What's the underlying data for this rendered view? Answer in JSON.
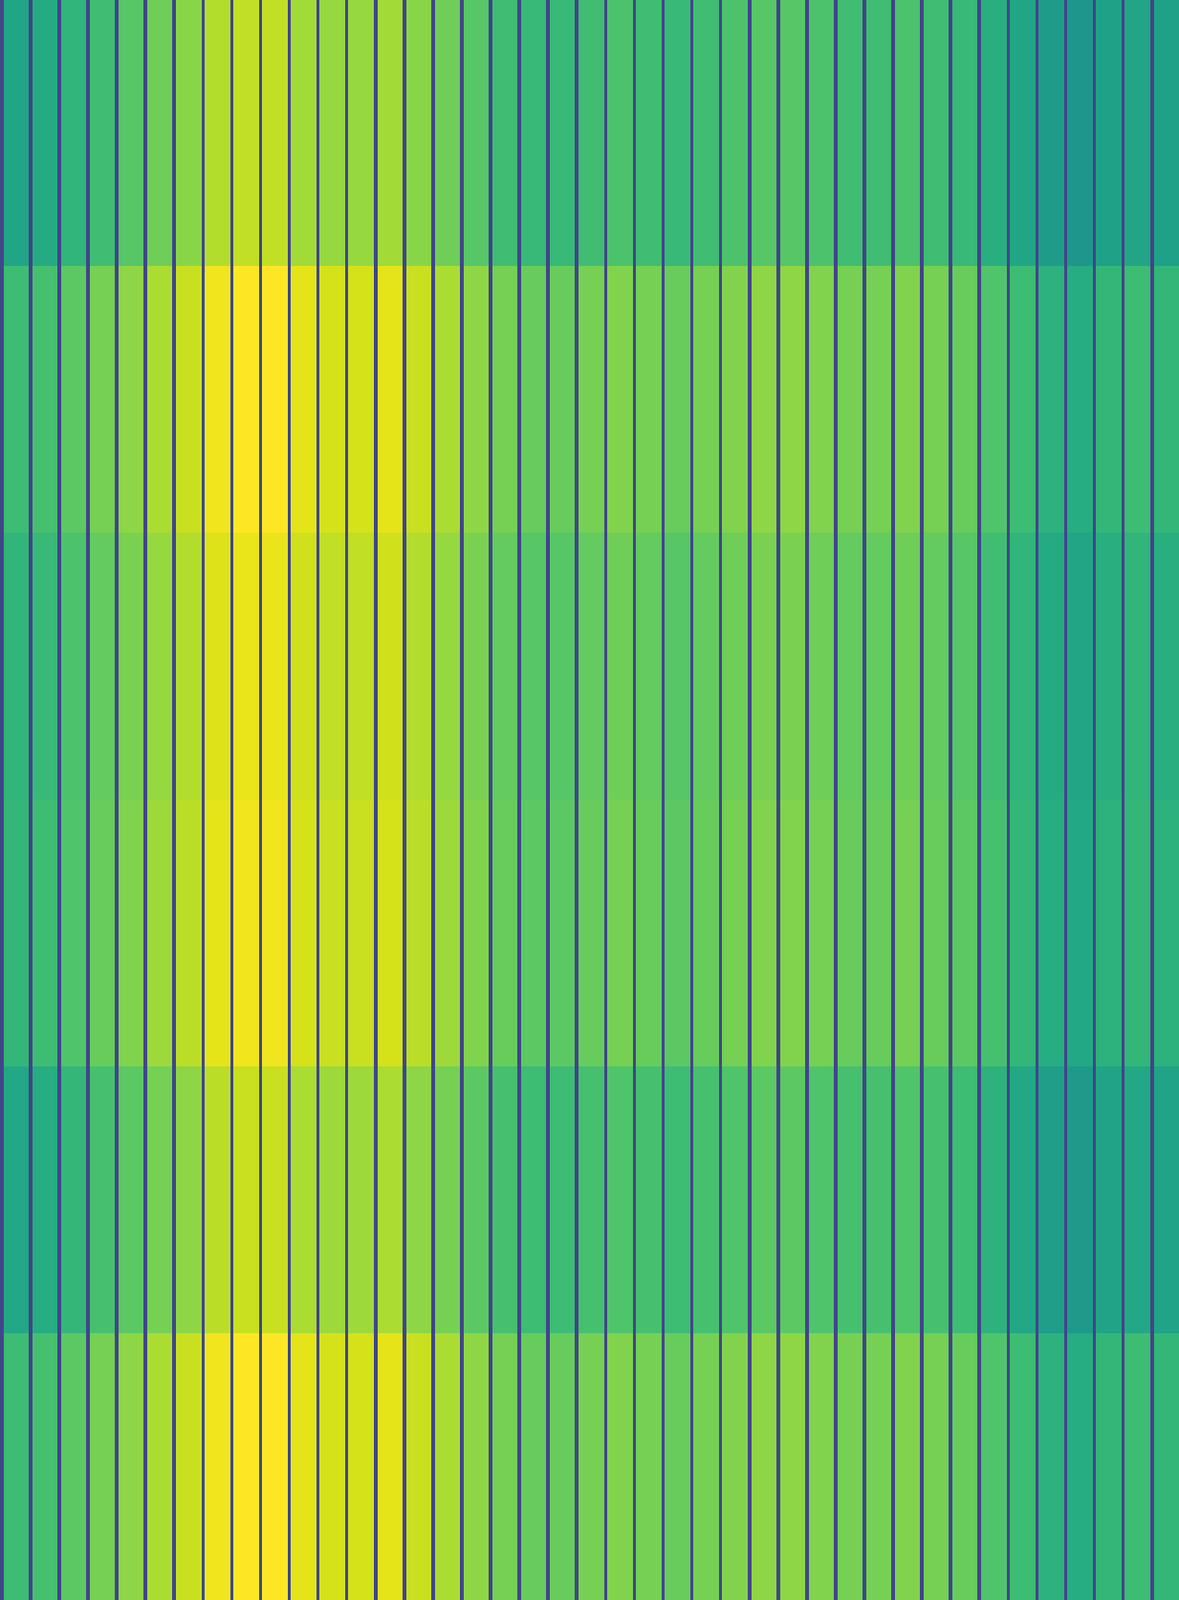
{
  "chart_data": {
    "type": "heatmap",
    "color": "viridis",
    "tick_labels": false,
    "grid": false,
    "zlim": [
      0,
      0.95
    ],
    "x_edges": [
      0,
      0.12,
      1,
      1.12,
      2,
      2.12,
      3,
      3.12,
      4,
      4.12,
      5,
      5.12,
      6,
      6.12,
      7,
      7.12,
      8,
      8.12,
      9,
      9.12,
      10,
      10.12,
      11,
      11.12,
      12,
      12.12,
      13,
      13.12,
      14,
      14.12,
      15,
      15.12,
      16,
      16.12,
      17,
      17.12,
      18,
      18.12,
      19,
      19.12,
      20,
      20.12,
      21,
      21.12,
      22,
      22.12,
      23,
      23.12,
      24,
      24.12,
      25,
      25.12,
      26,
      26.12,
      27,
      27.12,
      28,
      28.12,
      29,
      29.12,
      30,
      30.12,
      31,
      31.12,
      32,
      32.12,
      33,
      33.12,
      34,
      34.12,
      35,
      35.12,
      36,
      36.12,
      37,
      37.12,
      38,
      38.12,
      39,
      39.12,
      40,
      40.12,
      41
    ],
    "cells": [
      [
        0.2,
        0.56,
        0.2,
        0.58,
        0.2,
        0.62,
        0.2,
        0.66,
        0.2,
        0.7,
        0.2,
        0.74,
        0.2,
        0.78,
        0.2,
        0.84,
        0.2,
        0.86,
        0.2,
        0.86,
        0.2,
        0.82,
        0.2,
        0.8,
        0.2,
        0.8,
        0.2,
        0.82,
        0.2,
        0.78,
        0.2,
        0.74,
        0.2,
        0.7,
        0.2,
        0.66,
        0.2,
        0.64,
        0.2,
        0.64,
        0.2,
        0.66,
        0.2,
        0.68,
        0.2,
        0.66,
        0.2,
        0.64,
        0.2,
        0.66,
        0.2,
        0.68,
        0.2,
        0.7,
        0.2,
        0.7,
        0.2,
        0.68,
        0.2,
        0.66,
        0.2,
        0.66,
        0.2,
        0.68,
        0.2,
        0.66,
        0.2,
        0.64,
        0.2,
        0.6,
        0.2,
        0.56,
        0.2,
        0.52,
        0.2,
        0.5,
        0.2,
        0.54,
        0.2,
        0.56,
        0.2,
        0.54
      ],
      [
        0.2,
        0.65,
        0.2,
        0.67,
        0.2,
        0.71,
        0.2,
        0.75,
        0.2,
        0.79,
        0.2,
        0.83,
        0.2,
        0.87,
        0.2,
        0.93,
        0.2,
        0.95,
        0.2,
        0.95,
        0.2,
        0.91,
        0.2,
        0.89,
        0.2,
        0.89,
        0.2,
        0.91,
        0.2,
        0.87,
        0.2,
        0.83,
        0.2,
        0.79,
        0.2,
        0.75,
        0.2,
        0.73,
        0.2,
        0.73,
        0.2,
        0.75,
        0.2,
        0.77,
        0.2,
        0.75,
        0.2,
        0.73,
        0.2,
        0.75,
        0.2,
        0.77,
        0.2,
        0.79,
        0.2,
        0.79,
        0.2,
        0.77,
        0.2,
        0.75,
        0.2,
        0.75,
        0.2,
        0.77,
        0.2,
        0.75,
        0.2,
        0.73,
        0.2,
        0.69,
        0.2,
        0.65,
        0.2,
        0.61,
        0.2,
        0.59,
        0.2,
        0.63,
        0.2,
        0.65,
        0.2,
        0.63
      ],
      [
        0.2,
        0.62,
        0.2,
        0.64,
        0.2,
        0.68,
        0.2,
        0.72,
        0.2,
        0.76,
        0.2,
        0.8,
        0.2,
        0.84,
        0.2,
        0.9,
        0.2,
        0.92,
        0.2,
        0.92,
        0.2,
        0.88,
        0.2,
        0.86,
        0.2,
        0.86,
        0.2,
        0.88,
        0.2,
        0.84,
        0.2,
        0.8,
        0.2,
        0.76,
        0.2,
        0.72,
        0.2,
        0.7,
        0.2,
        0.7,
        0.2,
        0.72,
        0.2,
        0.74,
        0.2,
        0.72,
        0.2,
        0.7,
        0.2,
        0.72,
        0.2,
        0.74,
        0.2,
        0.76,
        0.2,
        0.76,
        0.2,
        0.74,
        0.2,
        0.72,
        0.2,
        0.72,
        0.2,
        0.74,
        0.2,
        0.72,
        0.2,
        0.7,
        0.2,
        0.66,
        0.2,
        0.62,
        0.2,
        0.58,
        0.2,
        0.56,
        0.2,
        0.6,
        0.2,
        0.62,
        0.2,
        0.6
      ],
      [
        0.2,
        0.63,
        0.2,
        0.65,
        0.2,
        0.69,
        0.2,
        0.73,
        0.2,
        0.77,
        0.2,
        0.81,
        0.2,
        0.85,
        0.2,
        0.91,
        0.2,
        0.93,
        0.2,
        0.93,
        0.2,
        0.89,
        0.2,
        0.87,
        0.2,
        0.87,
        0.2,
        0.89,
        0.2,
        0.85,
        0.2,
        0.81,
        0.2,
        0.77,
        0.2,
        0.73,
        0.2,
        0.71,
        0.2,
        0.71,
        0.2,
        0.73,
        0.2,
        0.75,
        0.2,
        0.73,
        0.2,
        0.71,
        0.2,
        0.73,
        0.2,
        0.75,
        0.2,
        0.77,
        0.2,
        0.77,
        0.2,
        0.75,
        0.2,
        0.73,
        0.2,
        0.73,
        0.2,
        0.75,
        0.2,
        0.73,
        0.2,
        0.71,
        0.2,
        0.67,
        0.2,
        0.63,
        0.2,
        0.59,
        0.2,
        0.57,
        0.2,
        0.61,
        0.2,
        0.63,
        0.2,
        0.61
      ],
      [
        0.2,
        0.57,
        0.2,
        0.59,
        0.2,
        0.63,
        0.2,
        0.67,
        0.2,
        0.71,
        0.2,
        0.75,
        0.2,
        0.79,
        0.2,
        0.85,
        0.2,
        0.87,
        0.2,
        0.87,
        0.2,
        0.83,
        0.2,
        0.81,
        0.2,
        0.81,
        0.2,
        0.83,
        0.2,
        0.79,
        0.2,
        0.75,
        0.2,
        0.71,
        0.2,
        0.67,
        0.2,
        0.65,
        0.2,
        0.65,
        0.2,
        0.67,
        0.2,
        0.69,
        0.2,
        0.67,
        0.2,
        0.65,
        0.2,
        0.67,
        0.2,
        0.69,
        0.2,
        0.71,
        0.2,
        0.71,
        0.2,
        0.69,
        0.2,
        0.67,
        0.2,
        0.67,
        0.2,
        0.69,
        0.2,
        0.67,
        0.2,
        0.65,
        0.2,
        0.61,
        0.2,
        0.57,
        0.2,
        0.53,
        0.2,
        0.51,
        0.2,
        0.55,
        0.2,
        0.57,
        0.2,
        0.55
      ],
      [
        0.2,
        0.65,
        0.2,
        0.67,
        0.2,
        0.71,
        0.2,
        0.75,
        0.2,
        0.79,
        0.2,
        0.83,
        0.2,
        0.87,
        0.2,
        0.93,
        0.2,
        0.95,
        0.2,
        0.95,
        0.2,
        0.91,
        0.2,
        0.89,
        0.2,
        0.89,
        0.2,
        0.91,
        0.2,
        0.87,
        0.2,
        0.83,
        0.2,
        0.79,
        0.2,
        0.75,
        0.2,
        0.73,
        0.2,
        0.73,
        0.2,
        0.75,
        0.2,
        0.77,
        0.2,
        0.75,
        0.2,
        0.73,
        0.2,
        0.75,
        0.2,
        0.77,
        0.2,
        0.79,
        0.2,
        0.79,
        0.2,
        0.77,
        0.2,
        0.75,
        0.2,
        0.75,
        0.2,
        0.77,
        0.2,
        0.75,
        0.2,
        0.73,
        0.2,
        0.69,
        0.2,
        0.65,
        0.2,
        0.61,
        0.2,
        0.59,
        0.2,
        0.63,
        0.2,
        0.65,
        0.2,
        0.63
      ]
    ]
  }
}
